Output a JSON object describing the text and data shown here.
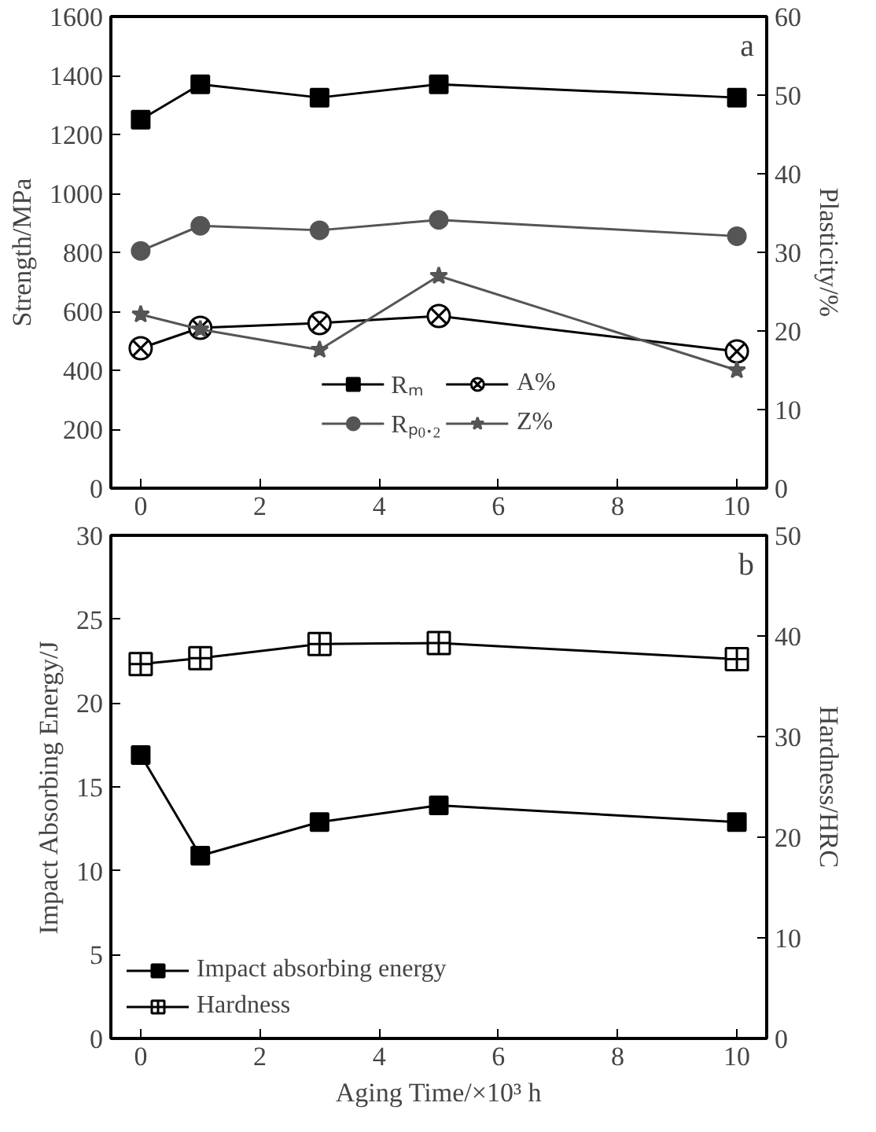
{
  "chart_data": [
    {
      "type": "line",
      "ylabel": "Strength/MPa",
      "y2label": "Plasticity/%",
      "annotations": [
        "a"
      ],
      "x": [
        0,
        1,
        3,
        5,
        10
      ],
      "xlim": [
        -0.5,
        10.5
      ],
      "xticks": [
        0,
        2,
        4,
        6,
        8,
        10
      ],
      "ylim": [
        0,
        1600
      ],
      "yticks": [
        0,
        200,
        400,
        600,
        800,
        1000,
        1200,
        1400,
        1600
      ],
      "y2lim": [
        0,
        60
      ],
      "y2ticks": [
        0,
        10,
        20,
        30,
        40,
        50,
        60
      ],
      "legend": "bottom",
      "grid": false,
      "series": [
        {
          "name": "Rₘ",
          "color": "#000000",
          "marker": "square",
          "values": [
            1250,
            1370,
            1325,
            1370,
            1325
          ]
        },
        {
          "name": "Rₚ₀.₂",
          "color": "#555555",
          "marker": "circle",
          "values": [
            805,
            890,
            875,
            910,
            855
          ]
        },
        {
          "name": "A%",
          "color": "#000000",
          "marker": "cross",
          "axis": "y2",
          "values": [
            17.8,
            20.4,
            21.0,
            21.9,
            17.4
          ]
        },
        {
          "name": "Z%",
          "color": "#555555",
          "marker": "star",
          "axis": "y2",
          "values": [
            22.1,
            20.2,
            17.6,
            27.0,
            15.0
          ]
        }
      ]
    },
    {
      "type": "line",
      "xlabel": "Aging Time/×10³ h",
      "ylabel": "Impact Absorbing Energy/J",
      "y2label": "Hardness/HRC",
      "annotations": [
        "b"
      ],
      "x": [
        0,
        1,
        3,
        5,
        10
      ],
      "xlim": [
        -0.5,
        10.5
      ],
      "xticks": [
        0,
        2,
        4,
        6,
        8,
        10
      ],
      "ylim": [
        0,
        30
      ],
      "yticks": [
        0,
        5,
        10,
        15,
        20,
        25,
        30
      ],
      "y2lim": [
        0,
        50
      ],
      "y2ticks": [
        0,
        10,
        20,
        30,
        40,
        50
      ],
      "legend": "bottom left",
      "grid": false,
      "series": [
        {
          "name": "Impact absorbing energy",
          "color": "#000000",
          "marker": "square",
          "values": [
            16.9,
            10.9,
            12.9,
            13.9,
            12.9
          ]
        },
        {
          "name": "Hardness",
          "color": "#000000",
          "marker": "cross",
          "axis": "y2",
          "values": [
            37.2,
            37.8,
            39.2,
            39.3,
            37.7
          ]
        }
      ]
    }
  ]
}
